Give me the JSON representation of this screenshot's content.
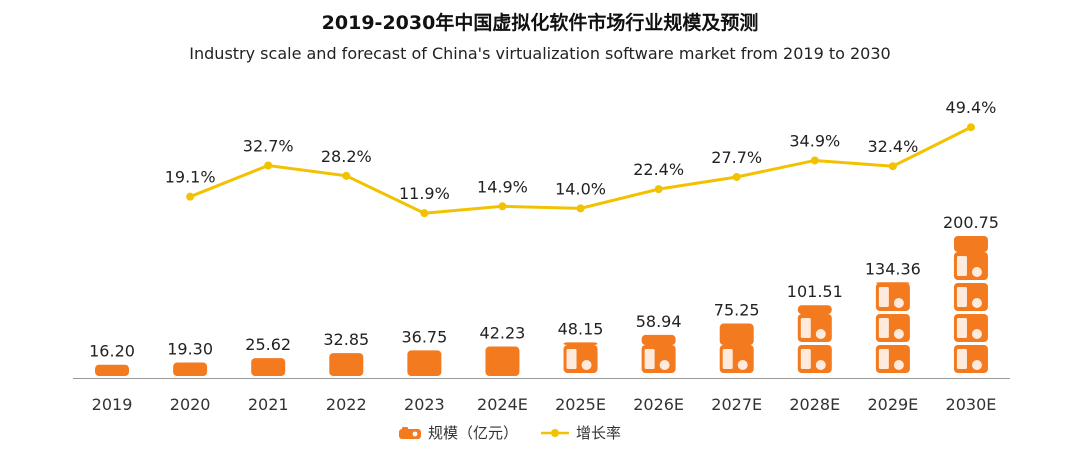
{
  "title": "2019-2030年中国虚拟化软件市场行业规模及预测",
  "subtitle": "Industry scale and forecast of China's virtualization software market from 2019 to 2030",
  "colors": {
    "bar": "#f47a1f",
    "line": "#f2c200",
    "axis": "#999999",
    "text": "#333333"
  },
  "chart_data": {
    "type": "bar",
    "categories": [
      "2019",
      "2020",
      "2021",
      "2022",
      "2023",
      "2024E",
      "2025E",
      "2026E",
      "2027E",
      "2028E",
      "2029E",
      "2030E"
    ],
    "series": [
      {
        "name": "规模（亿元）",
        "type": "bar",
        "values": [
          16.2,
          19.3,
          25.62,
          32.85,
          36.75,
          42.23,
          48.15,
          58.94,
          75.25,
          101.51,
          134.36,
          200.75
        ],
        "labels": [
          "16.20",
          "19.30",
          "25.62",
          "32.85",
          "36.75",
          "42.23",
          "48.15",
          "58.94",
          "75.25",
          "101.51",
          "134.36",
          "200.75"
        ]
      },
      {
        "name": "增长率",
        "type": "line",
        "values": [
          null,
          19.1,
          32.7,
          28.2,
          11.9,
          14.9,
          14.0,
          22.4,
          27.7,
          34.9,
          32.4,
          49.4
        ],
        "labels": [
          "",
          "19.1%",
          "32.7%",
          "28.2%",
          "11.9%",
          "14.9%",
          "14.0%",
          "22.4%",
          "27.7%",
          "34.9%",
          "32.4%",
          "49.4%"
        ]
      }
    ],
    "bar_ylim": [
      0,
      220
    ],
    "line_ylim": [
      -60,
      70
    ],
    "legend_position": "bottom-center",
    "grid": false
  },
  "legend": {
    "bar_label": "规模（亿元）",
    "line_label": "增长率"
  }
}
